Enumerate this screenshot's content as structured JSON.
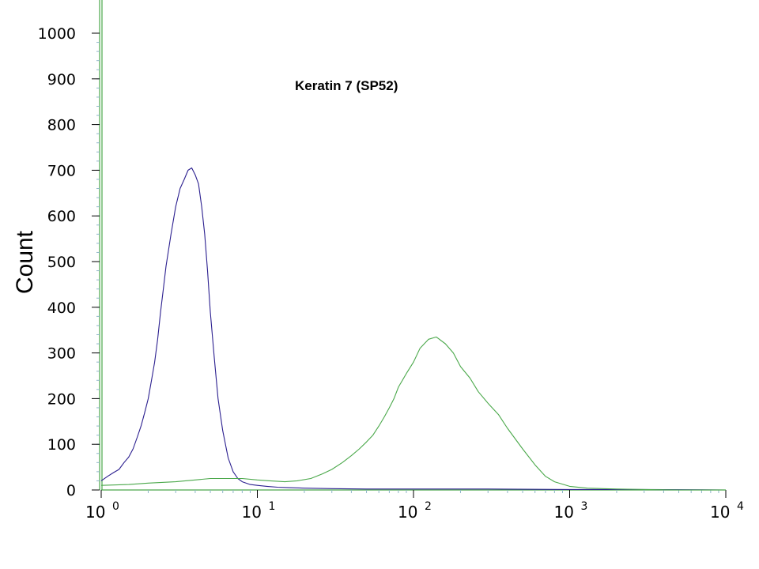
{
  "chart_data": {
    "type": "line",
    "title": "Keratin 7 (SP52)",
    "ylabel": "Count",
    "xlabel": "",
    "x_scale": "log",
    "xlim": [
      1,
      10000
    ],
    "ylim": [
      0,
      1000
    ],
    "y_ticks": [
      "0",
      "100",
      "200",
      "300",
      "400",
      "500",
      "600",
      "700",
      "800",
      "900",
      "1000"
    ],
    "x_ticks": [
      {
        "base": "10",
        "exp": "0"
      },
      {
        "base": "10",
        "exp": "1"
      },
      {
        "base": "10",
        "exp": "2"
      },
      {
        "base": "10",
        "exp": "3"
      },
      {
        "base": "10",
        "exp": "4"
      }
    ],
    "grid": false,
    "legend": "none",
    "series": [
      {
        "color": "#2b1f8f",
        "x": [
          1.0,
          1.1,
          1.2,
          1.3,
          1.4,
          1.5,
          1.6,
          1.7,
          1.8,
          1.9,
          2.0,
          2.1,
          2.2,
          2.3,
          2.4,
          2.5,
          2.6,
          2.8,
          3.0,
          3.2,
          3.4,
          3.6,
          3.8,
          4.0,
          4.2,
          4.4,
          4.6,
          4.8,
          5.0,
          5.3,
          5.6,
          6.0,
          6.5,
          7.0,
          7.5,
          8.0,
          9.0,
          10.0,
          11.5,
          13.5,
          16.0,
          20.0,
          30.0,
          50.0,
          100.0,
          300.0,
          1000.0,
          3000.0,
          10000.0
        ],
        "y": [
          20,
          30,
          38,
          45,
          60,
          72,
          90,
          115,
          140,
          170,
          200,
          240,
          280,
          330,
          390,
          440,
          490,
          560,
          620,
          660,
          680,
          700,
          705,
          690,
          670,
          620,
          560,
          480,
          390,
          290,
          200,
          130,
          70,
          40,
          25,
          18,
          12,
          10,
          8,
          6,
          5,
          4,
          3,
          2,
          2,
          2,
          1,
          1,
          0
        ]
      },
      {
        "color": "#4aa84a",
        "x": [
          1.0,
          1.5,
          2.0,
          3.0,
          4.0,
          5.0,
          6.0,
          8.0,
          10.0,
          12.0,
          15.0,
          18.0,
          22.0,
          26.0,
          30.0,
          35.0,
          40.0,
          45.0,
          50.0,
          55.0,
          60.0,
          65.0,
          70.0,
          75.0,
          80.0,
          90.0,
          100.0,
          110.0,
          125.0,
          140.0,
          160.0,
          180.0,
          200.0,
          230.0,
          260.0,
          300.0,
          350.0,
          400.0,
          500.0,
          600.0,
          700.0,
          800.0,
          1000.0,
          1300.0,
          2000.0,
          3000.0,
          5000.0,
          10000.0
        ],
        "y": [
          10,
          12,
          15,
          18,
          22,
          25,
          25,
          25,
          22,
          20,
          18,
          20,
          25,
          35,
          45,
          60,
          75,
          90,
          105,
          120,
          140,
          160,
          180,
          200,
          225,
          255,
          280,
          310,
          330,
          335,
          320,
          300,
          270,
          245,
          215,
          190,
          165,
          135,
          90,
          55,
          30,
          18,
          8,
          4,
          2,
          1,
          0,
          0
        ]
      }
    ]
  }
}
